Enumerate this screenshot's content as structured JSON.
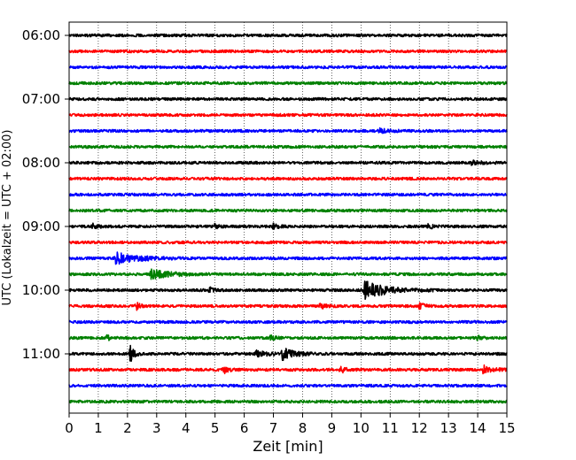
{
  "chart_data": {
    "type": "line",
    "title": "",
    "xlabel": "Zeit  [min]",
    "ylabel": "UTC (Lokalzeit = UTC + 02:00)",
    "xlim": [
      0,
      15
    ],
    "xticks": [
      0,
      1,
      2,
      3,
      4,
      5,
      6,
      7,
      8,
      9,
      10,
      11,
      12,
      13,
      14,
      15
    ],
    "grid": "vertical dotted lines at each minute",
    "trace_start": "06:00",
    "trace_interval_min": 15,
    "y_tick_labels": [
      "06:00",
      "07:00",
      "08:00",
      "09:00",
      "10:00",
      "11:00"
    ],
    "trace_colors": [
      "#000000",
      "#ff0000",
      "#0000ff",
      "#008000"
    ],
    "series": [
      {
        "time": "06:00",
        "color": "#000000",
        "events": []
      },
      {
        "time": "06:15",
        "color": "#ff0000",
        "events": []
      },
      {
        "time": "06:30",
        "color": "#0000ff",
        "events": []
      },
      {
        "time": "06:45",
        "color": "#008000",
        "events": []
      },
      {
        "time": "07:00",
        "color": "#000000",
        "events": []
      },
      {
        "time": "07:15",
        "color": "#ff0000",
        "events": []
      },
      {
        "time": "07:30",
        "color": "#0000ff",
        "events": [
          {
            "t": 10.6,
            "amp": 3,
            "dur": 0.4
          }
        ]
      },
      {
        "time": "07:45",
        "color": "#008000",
        "events": []
      },
      {
        "time": "08:00",
        "color": "#000000",
        "events": [
          {
            "t": 13.8,
            "amp": 2,
            "dur": 0.5
          }
        ]
      },
      {
        "time": "08:15",
        "color": "#ff0000",
        "events": []
      },
      {
        "time": "08:30",
        "color": "#0000ff",
        "events": []
      },
      {
        "time": "08:45",
        "color": "#008000",
        "events": []
      },
      {
        "time": "09:00",
        "color": "#000000",
        "events": [
          {
            "t": 0.8,
            "amp": 2.5,
            "dur": 0.3
          },
          {
            "t": 5.0,
            "amp": 2.5,
            "dur": 0.2
          },
          {
            "t": 7.0,
            "amp": 2.5,
            "dur": 0.3
          },
          {
            "t": 12.3,
            "amp": 2.5,
            "dur": 0.3
          }
        ]
      },
      {
        "time": "09:15",
        "color": "#ff0000",
        "events": []
      },
      {
        "time": "09:30",
        "color": "#0000ff",
        "events": [
          {
            "t": 1.6,
            "amp": 6,
            "dur": 1.2
          }
        ]
      },
      {
        "time": "09:45",
        "color": "#008000",
        "events": [
          {
            "t": 2.8,
            "amp": 5,
            "dur": 1.0
          }
        ]
      },
      {
        "time": "10:00",
        "color": "#000000",
        "events": [
          {
            "t": 4.8,
            "amp": 3,
            "dur": 0.2
          },
          {
            "t": 10.1,
            "amp": 10,
            "dur": 1.2
          }
        ]
      },
      {
        "time": "10:15",
        "color": "#ff0000",
        "events": [
          {
            "t": 2.3,
            "amp": 4,
            "dur": 0.2
          },
          {
            "t": 8.6,
            "amp": 3,
            "dur": 0.3
          },
          {
            "t": 12.0,
            "amp": 3,
            "dur": 0.3
          }
        ]
      },
      {
        "time": "10:30",
        "color": "#0000ff",
        "events": []
      },
      {
        "time": "10:45",
        "color": "#008000",
        "events": [
          {
            "t": 1.3,
            "amp": 3,
            "dur": 0.2
          },
          {
            "t": 6.9,
            "amp": 3,
            "dur": 0.2
          },
          {
            "t": 14.0,
            "amp": 3,
            "dur": 0.2
          }
        ]
      },
      {
        "time": "11:00",
        "color": "#000000",
        "events": [
          {
            "t": 2.1,
            "amp": 11,
            "dur": 0.2
          },
          {
            "t": 6.4,
            "amp": 3,
            "dur": 0.6
          },
          {
            "t": 7.3,
            "amp": 7,
            "dur": 0.6
          }
        ]
      },
      {
        "time": "11:15",
        "color": "#ff0000",
        "events": [
          {
            "t": 5.3,
            "amp": 4,
            "dur": 0.3
          },
          {
            "t": 9.3,
            "amp": 3,
            "dur": 0.3
          },
          {
            "t": 14.2,
            "amp": 5,
            "dur": 0.5
          }
        ]
      },
      {
        "time": "11:30",
        "color": "#0000ff",
        "events": []
      },
      {
        "time": "11:45",
        "color": "#008000",
        "events": []
      }
    ]
  }
}
